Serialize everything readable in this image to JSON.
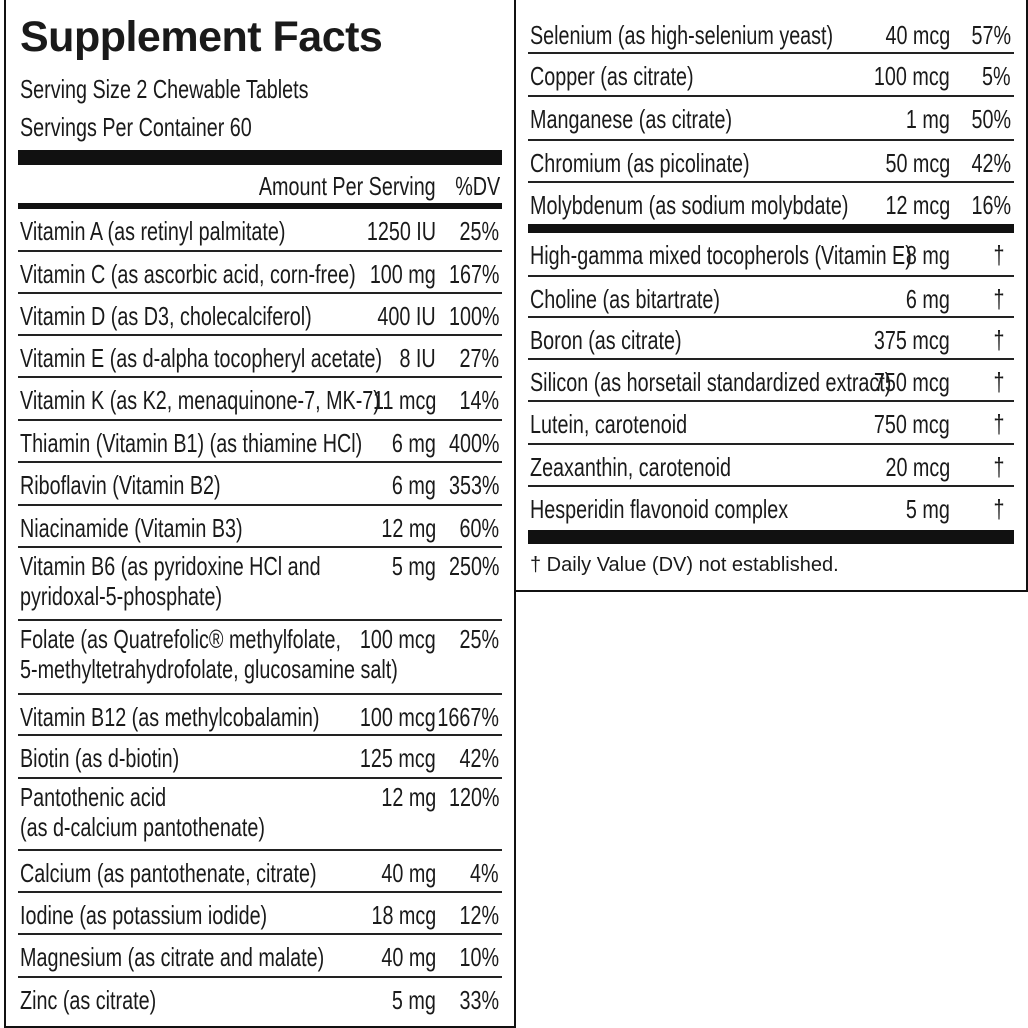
{
  "title": "Supplement Facts",
  "serving_size": "Serving Size 2 Chewable Tablets",
  "servings_per_container": "Servings Per Container 60",
  "header": {
    "amount": "Amount Per Serving",
    "dv": "%DV"
  },
  "left_rows": [
    {
      "name": "Vitamin A (as retinyl palmitate)",
      "amount": "1250 IU",
      "dv": "25%"
    },
    {
      "name": "Vitamin C (as ascorbic acid, corn-free)",
      "amount": "100 mg",
      "dv": "167%"
    },
    {
      "name": "Vitamin D (as D3, cholecalciferol)",
      "amount": "400 IU",
      "dv": "100%"
    },
    {
      "name": "Vitamin E (as d-alpha tocopheryl acetate)",
      "amount": "8 IU",
      "dv": "27%"
    },
    {
      "name": "Vitamin K (as K2, menaquinone-7, MK-7)",
      "amount": "11 mcg",
      "dv": "14%"
    },
    {
      "name": "Thiamin (Vitamin B1) (as thiamine HCl)",
      "amount": "6 mg",
      "dv": "400%"
    },
    {
      "name": "Riboflavin (Vitamin B2)",
      "amount": "6 mg",
      "dv": "353%"
    },
    {
      "name": "Niacinamide (Vitamin B3)",
      "amount": "12 mg",
      "dv": "60%"
    },
    {
      "name": "Vitamin B6 (as pyridoxine HCl and",
      "name2": "pyridoxal-5-phosphate)",
      "amount": "5 mg",
      "dv": "250%"
    },
    {
      "name": "Folate (as Quatrefolic® methylfolate,",
      "name2": "5-methyltetrahydrofolate, glucosamine salt)",
      "amount": "100 mcg",
      "dv": "25%"
    },
    {
      "name": "Vitamin B12 (as methylcobalamin)",
      "amount": "100 mcg",
      "dv": "1667%"
    },
    {
      "name": "Biotin (as d-biotin)",
      "amount": "125 mcg",
      "dv": "42%"
    },
    {
      "name": "Pantothenic acid",
      "name2": "(as d-calcium pantothenate)",
      "amount": "12 mg",
      "dv": "120%"
    },
    {
      "name": "Calcium (as pantothenate, citrate)",
      "amount": "40 mg",
      "dv": "4%"
    },
    {
      "name": "Iodine (as potassium iodide)",
      "amount": "18 mcg",
      "dv": "12%"
    },
    {
      "name": "Magnesium (as citrate and malate)",
      "amount": "40 mg",
      "dv": "10%"
    },
    {
      "name": "Zinc (as citrate)",
      "amount": "5 mg",
      "dv": "33%"
    }
  ],
  "right_rows_dv": [
    {
      "name": "Selenium (as high-selenium yeast)",
      "amount": "40 mcg",
      "dv": "57%"
    },
    {
      "name": "Copper (as citrate)",
      "amount": "100 mcg",
      "dv": "5%"
    },
    {
      "name": "Manganese (as citrate)",
      "amount": "1 mg",
      "dv": "50%"
    },
    {
      "name": "Chromium (as picolinate)",
      "amount": "50 mcg",
      "dv": "42%"
    },
    {
      "name": "Molybdenum (as sodium molybdate)",
      "amount": "12 mcg",
      "dv": "16%"
    }
  ],
  "right_rows_nodv": [
    {
      "name": "High-gamma mixed tocopherols (Vitamin E)",
      "amount": "8 mg",
      "dv": "†"
    },
    {
      "name": "Choline (as bitartrate)",
      "amount": "6 mg",
      "dv": "†"
    },
    {
      "name": "Boron (as citrate)",
      "amount": "375 mcg",
      "dv": "†"
    },
    {
      "name": "Silicon (as horsetail standardized extract)",
      "amount": "750 mcg",
      "dv": "†"
    },
    {
      "name": "Lutein, carotenoid",
      "amount": "750 mcg",
      "dv": "†"
    },
    {
      "name": "Zeaxanthin, carotenoid",
      "amount": "20 mcg",
      "dv": "†"
    },
    {
      "name": "Hesperidin flavonoid complex",
      "amount": "5 mg",
      "dv": "†"
    }
  ],
  "footnote": "† Daily Value (DV) not established."
}
